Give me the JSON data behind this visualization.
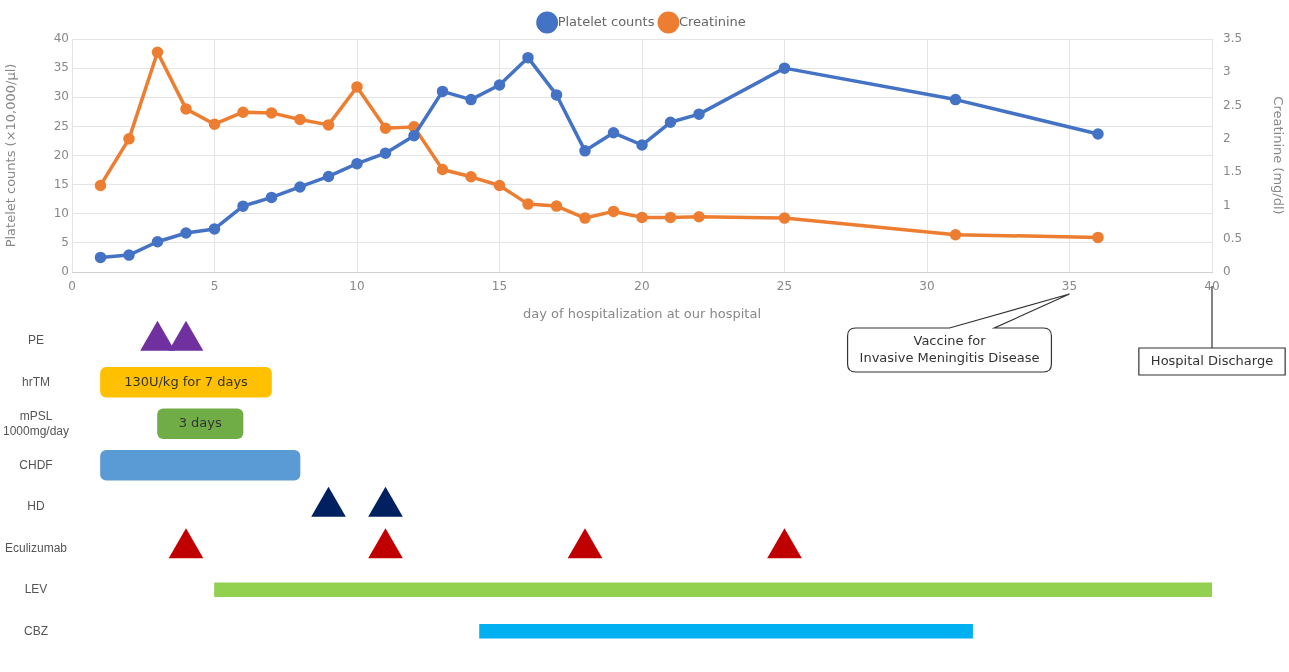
{
  "chart_data": [
    {
      "type": "line",
      "xlabel": "day of hospitalization at our hospital",
      "ylabel": "Platelet counts (×10,000/μl)",
      "y2label": "Creatinine (mg/dl)",
      "xlim": [
        0,
        40
      ],
      "xticks": [
        0,
        5,
        10,
        15,
        20,
        25,
        30,
        35,
        40
      ],
      "ylim": [
        0,
        40
      ],
      "yticks": [
        0,
        5,
        10,
        15,
        20,
        25,
        30,
        35,
        40
      ],
      "y2lim": [
        0,
        3.5
      ],
      "y2ticks": [
        0,
        0.5,
        1,
        1.5,
        2,
        2.5,
        3,
        3.5
      ],
      "grid": true,
      "legend": "top",
      "marker": "circle",
      "line_style": "solid",
      "x": [
        1,
        2,
        3,
        4,
        5,
        6,
        7,
        8,
        9,
        10,
        11,
        12,
        13,
        14,
        15,
        16,
        17,
        18,
        19,
        20,
        21,
        22,
        25,
        31,
        36
      ],
      "series": [
        {
          "name": "Platelet counts",
          "color": "#4472c4",
          "values": [
            2.5,
            2.9,
            5.2,
            6.7,
            7.4,
            11.3,
            12.8,
            14.6,
            16.4,
            18.6,
            20.4,
            23.4,
            31.0,
            29.6,
            32.1,
            36.8,
            30.4,
            20.8,
            23.9,
            21.8,
            25.7,
            27.1,
            35.0,
            29.6,
            23.7
          ]
        },
        {
          "name": "Creatinine",
          "color": "#ed7d31",
          "axis": "y2",
          "values": [
            1.3,
            2.0,
            3.3,
            2.45,
            2.22,
            2.4,
            2.39,
            2.29,
            2.21,
            2.78,
            2.16,
            2.18,
            1.54,
            1.43,
            1.3,
            1.02,
            0.99,
            0.81,
            0.91,
            0.82,
            0.82,
            0.83,
            0.81,
            0.56,
            0.52
          ]
        }
      ],
      "annotations": [
        "Vaccine for\nInvasive Meningitis Disease",
        "Hospital Discharge"
      ]
    },
    {
      "type": "bar",
      "orientation": "horizontal",
      "xlim": [
        0,
        40
      ],
      "tick_labels": "y",
      "categories": [
        "PE",
        "hrTM",
        "mPSL 1000mg/day",
        "CHDF",
        "HD",
        "Eculizumab",
        "LEV",
        "CBZ"
      ],
      "series": [
        {
          "type": "bar",
          "base": [
            null,
            1,
            3,
            1,
            null,
            null,
            null,
            null
          ],
          "values": [
            null,
            6,
            3,
            7,
            null,
            null,
            null,
            null
          ],
          "colors": [
            null,
            "#ffc000",
            "#70ad47",
            "#5b9bd5",
            null,
            null,
            null,
            null
          ]
        },
        {
          "type": "bar",
          "base": [
            null,
            null,
            null,
            null,
            null,
            null,
            5,
            14.3
          ],
          "values": [
            null,
            null,
            null,
            null,
            null,
            null,
            35,
            17.3
          ],
          "colors": [
            null,
            null,
            null,
            null,
            null,
            null,
            "#92d050",
            "#00b0f0"
          ]
        },
        {
          "type": "scatter",
          "marker": "triangle",
          "values": [
            3,
            null,
            null,
            null,
            9,
            4,
            null,
            null
          ],
          "colors": [
            "#7030a0",
            null,
            null,
            null,
            "#002060",
            "#c00000",
            null,
            null
          ]
        },
        {
          "type": "scatter",
          "marker": "triangle",
          "values": [
            4,
            null,
            null,
            null,
            11,
            11,
            null,
            null
          ],
          "colors": [
            "#7030a0",
            null,
            null,
            null,
            "#002060",
            "#c00000",
            null,
            null
          ]
        },
        {
          "type": "scatter",
          "marker": "triangle",
          "values": [
            null,
            null,
            null,
            null,
            null,
            18,
            null,
            null
          ],
          "colors": [
            null,
            null,
            null,
            null,
            null,
            "#c00000",
            null,
            null
          ]
        },
        {
          "type": "scatter",
          "marker": "triangle",
          "values": [
            null,
            null,
            null,
            null,
            null,
            25,
            null,
            null
          ],
          "colors": [
            null,
            null,
            null,
            null,
            null,
            "#c00000",
            null,
            null
          ]
        }
      ],
      "annotations": [
        {
          "text": "130U/kg for 7 days",
          "x": 4,
          "y": "hrTM"
        },
        {
          "text": "3 days",
          "x": 4.5,
          "y": "mPSL 1000mg/day"
        }
      ]
    }
  ]
}
